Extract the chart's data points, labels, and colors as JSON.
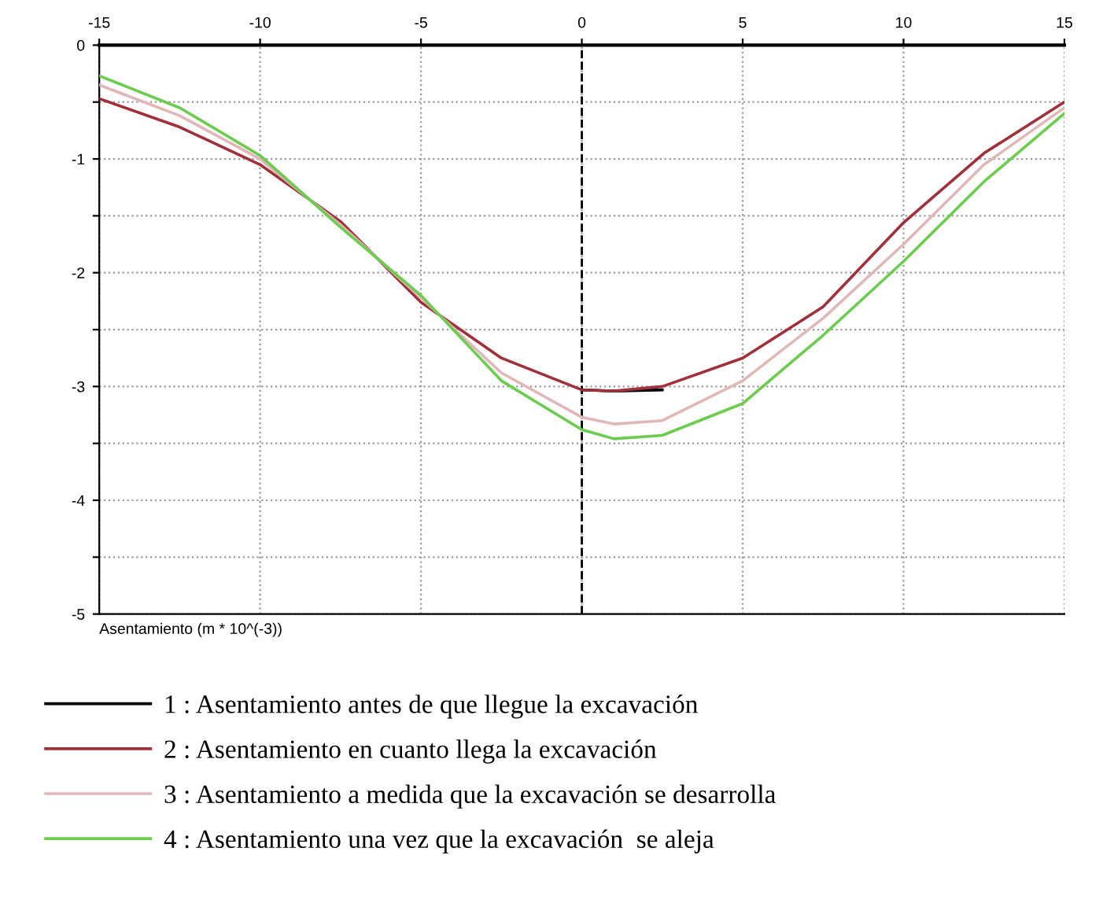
{
  "chart_data": {
    "type": "line",
    "x": [
      -15,
      -12.5,
      -10,
      -7.5,
      -5,
      -2.5,
      0,
      1,
      2.5,
      5,
      7.5,
      10,
      12.5,
      15
    ],
    "series": [
      {
        "name": "1 : Asentamiento antes de que llegue la excavación",
        "color": "#000000",
        "values": [
          null,
          null,
          null,
          null,
          null,
          null,
          -3.03,
          -3.04,
          -3.03,
          null,
          null,
          null,
          null,
          null
        ]
      },
      {
        "name": "2 : Asentamiento en cuanto llega la excavación",
        "color": "#a0303a",
        "values": [
          -0.47,
          -0.72,
          -1.05,
          -1.55,
          -2.26,
          -2.75,
          -3.03,
          -3.04,
          -3.0,
          -2.75,
          -2.3,
          -1.56,
          -0.95,
          -0.5
        ]
      },
      {
        "name": "3 : Asentamiento a medida que la excavación se desarrolla",
        "color": "#e0b8b8",
        "values": [
          -0.35,
          -0.62,
          -1.0,
          -1.58,
          -2.22,
          -2.88,
          -3.27,
          -3.33,
          -3.3,
          -2.95,
          -2.4,
          -1.75,
          -1.05,
          -0.55
        ]
      },
      {
        "name": "4 : Asentamiento una vez que la excavación  se aleja",
        "color": "#6ccc50",
        "values": [
          -0.27,
          -0.55,
          -0.97,
          -1.6,
          -2.2,
          -2.95,
          -3.38,
          -3.46,
          -3.43,
          -3.15,
          -2.55,
          -1.9,
          -1.2,
          -0.6
        ]
      }
    ],
    "xlim": [
      -15,
      15
    ],
    "xticks": [
      -15,
      -10,
      -5,
      0,
      5,
      10,
      15
    ],
    "ylim": [
      -5,
      0
    ],
    "yticks": [
      0,
      {
        "value": -0.5,
        "label": null
      },
      -1,
      {
        "value": -1.5,
        "label": null
      },
      -2,
      {
        "value": -2.5,
        "label": null
      },
      -3,
      {
        "value": -3.5,
        "label": null
      },
      -4,
      {
        "value": -4.5,
        "label": null
      },
      -5
    ],
    "xlabel": "Asentamiento (m * 10^(-3))",
    "ref_lines": [
      {
        "axis": "x",
        "value": 0,
        "label": null,
        "color": "#000000",
        "line_style": "dashed"
      }
    ],
    "grid": true,
    "legend": "bottom",
    "marker": "none",
    "line_style": "solid"
  }
}
